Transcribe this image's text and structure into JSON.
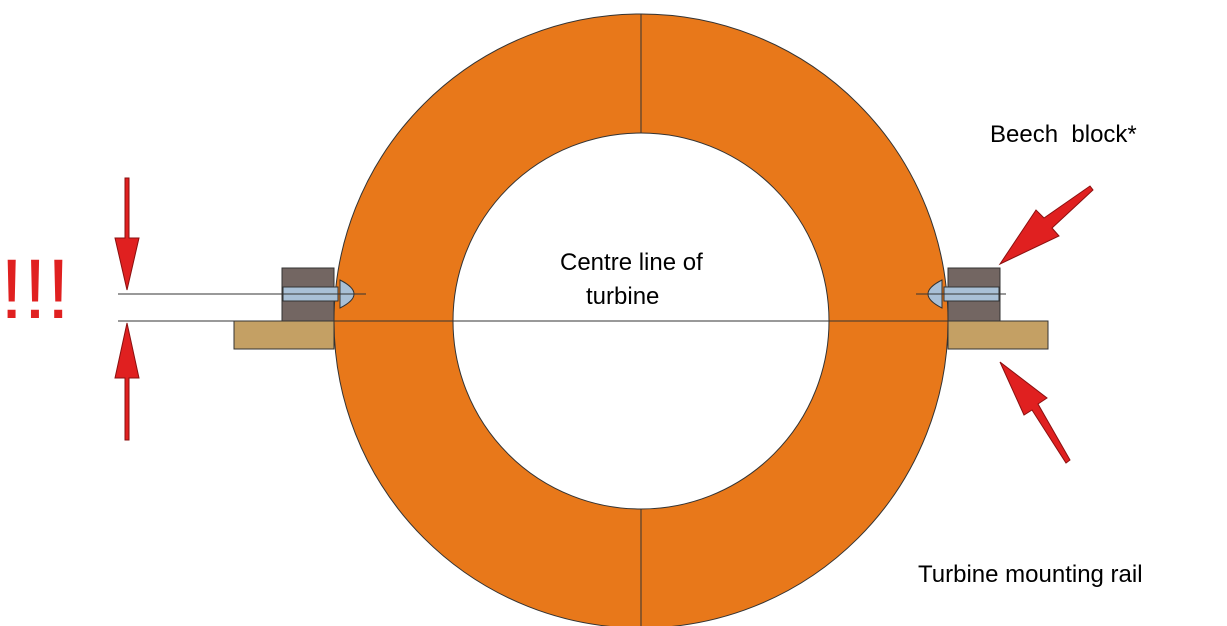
{
  "labels": {
    "warning": "!!!",
    "centre_line": [
      "Centre line of",
      "turbine"
    ],
    "beech_block": "Beech  block*",
    "rail": "Turbine mounting rail"
  }
}
